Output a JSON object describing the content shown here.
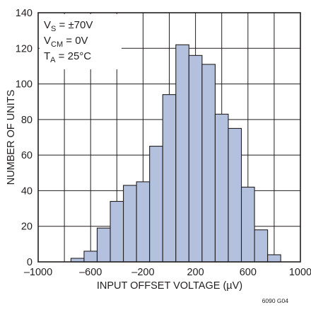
{
  "chart_data": {
    "type": "bar",
    "subtype": "histogram",
    "x_bins": [
      -700,
      -600,
      -500,
      -400,
      -300,
      -200,
      -100,
      0,
      100,
      200,
      300,
      400,
      500,
      600,
      700,
      800
    ],
    "bin_width": 100,
    "values": [
      2,
      6,
      19,
      34,
      43,
      45,
      65,
      94,
      122,
      116,
      111,
      83,
      75,
      42,
      18,
      4
    ],
    "xlabel": "INPUT OFFSET VOLTAGE (µV)",
    "ylabel": "NUMBER OF UNITS",
    "xlim": [
      -1000,
      1000
    ],
    "ylim": [
      0,
      140
    ],
    "x_ticks": [
      "–1000",
      "–600",
      "–200",
      "200",
      "600",
      "1000"
    ],
    "x_tick_values": [
      -1000,
      -600,
      -200,
      200,
      600,
      1000
    ],
    "y_ticks": [
      "0",
      "20",
      "40",
      "60",
      "80",
      "100",
      "120",
      "140"
    ],
    "y_tick_values": [
      0,
      20,
      40,
      60,
      80,
      100,
      120,
      140
    ],
    "grid": true,
    "grid_x_step": 200,
    "grid_y_step": 20,
    "bar_color": "#b3c1de",
    "conditions": [
      {
        "main": "V",
        "sub": "S",
        "rest": " = ±70V"
      },
      {
        "main": "V",
        "sub": "CM",
        "rest": " = 0V"
      },
      {
        "main": "T",
        "sub": "A",
        "rest": " = 25°C"
      }
    ],
    "figure_code": "6090 G04"
  }
}
